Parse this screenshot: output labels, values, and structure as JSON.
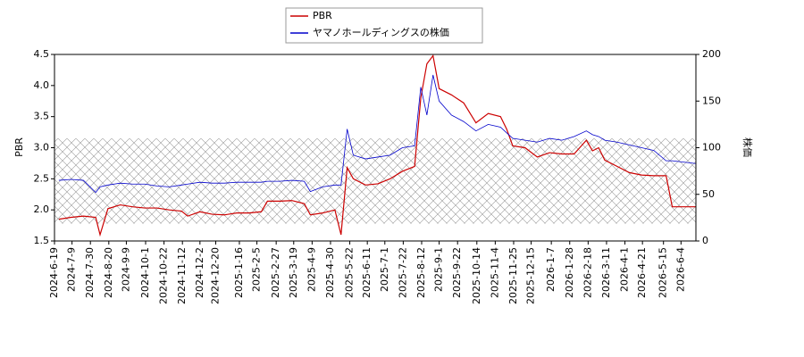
{
  "chart_data": {
    "type": "line",
    "x": [
      "2024-06-24",
      "2024-07-08",
      "2024-07-22",
      "2024-08-05",
      "2024-08-10",
      "2024-08-19",
      "2024-09-02",
      "2024-09-16",
      "2024-09-30",
      "2024-10-14",
      "2024-10-28",
      "2024-11-11",
      "2024-11-18",
      "2024-12-02",
      "2024-12-16",
      "2024-12-30",
      "2025-01-13",
      "2025-01-27",
      "2025-02-10",
      "2025-02-17",
      "2025-03-03",
      "2025-03-17",
      "2025-03-31",
      "2025-04-07",
      "2025-04-21",
      "2025-05-05",
      "2025-05-12",
      "2025-05-19",
      "2025-05-26",
      "2025-06-09",
      "2025-06-23",
      "2025-07-07",
      "2025-07-21",
      "2025-08-04",
      "2025-08-11",
      "2025-08-18",
      "2025-08-25",
      "2025-09-01",
      "2025-09-15",
      "2025-09-29",
      "2025-10-13",
      "2025-10-27",
      "2025-11-10",
      "2025-11-17",
      "2025-11-24",
      "2025-12-08",
      "2025-12-22",
      "2026-01-05",
      "2026-01-19",
      "2026-02-02",
      "2026-02-16",
      "2026-02-23",
      "2026-03-02",
      "2026-03-09",
      "2026-03-23",
      "2026-04-06",
      "2026-04-20",
      "2026-05-04",
      "2026-05-18",
      "2026-05-25",
      "2026-06-21"
    ],
    "series": [
      {
        "name": "PBR",
        "color": "#cc0000",
        "axis": "y",
        "values": [
          1.85,
          1.88,
          1.9,
          1.88,
          1.6,
          2.02,
          2.08,
          2.05,
          2.03,
          2.03,
          2.0,
          1.98,
          1.9,
          1.97,
          1.93,
          1.92,
          1.95,
          1.95,
          1.97,
          2.14,
          2.14,
          2.15,
          2.1,
          1.92,
          1.95,
          2.0,
          1.6,
          2.68,
          2.5,
          2.4,
          2.42,
          2.5,
          2.62,
          2.7,
          3.8,
          4.35,
          4.48,
          3.95,
          3.85,
          3.72,
          3.4,
          3.55,
          3.5,
          3.3,
          3.03,
          3.0,
          2.85,
          2.92,
          2.9,
          2.9,
          3.12,
          2.95,
          3.0,
          2.8,
          2.7,
          2.6,
          2.56,
          2.55,
          2.55,
          2.05,
          2.05
        ]
      },
      {
        "name": "ヤマノホールディングスの株価",
        "color": "#0000cc",
        "axis": "y2",
        "values": [
          65,
          66,
          65,
          52,
          58,
          60,
          62,
          61,
          61,
          59,
          58,
          60,
          61,
          63,
          62,
          62,
          63,
          63,
          63,
          64,
          64,
          65,
          64,
          53,
          58,
          60,
          60,
          120,
          92,
          88,
          90,
          92,
          100,
          102,
          165,
          135,
          178,
          150,
          135,
          128,
          118,
          125,
          122,
          116,
          110,
          108,
          106,
          110,
          108,
          112,
          118,
          114,
          112,
          108,
          106,
          103,
          100,
          97,
          86,
          86,
          83
        ]
      }
    ],
    "ylabel": "PBR",
    "y2label": "株価",
    "xlim": [
      "2024-06-19",
      "2026-06-21"
    ],
    "xticks": [
      {
        "value": "2024-06-19",
        "label": "2024-6-19"
      },
      {
        "value": "2024-07-09",
        "label": "2024-7-9"
      },
      {
        "value": "2024-07-30",
        "label": "2024-7-30"
      },
      {
        "value": "2024-08-20",
        "label": "2024-8-20"
      },
      {
        "value": "2024-09-09",
        "label": "2024-9-9"
      },
      {
        "value": "2024-10-01",
        "label": "2024-10-1"
      },
      {
        "value": "2024-10-22",
        "label": "2024-10-22"
      },
      {
        "value": "2024-11-12",
        "label": "2024-11-12"
      },
      {
        "value": "2024-12-02",
        "label": "2024-12-2"
      },
      {
        "value": "2024-12-20",
        "label": "2024-12-20"
      },
      {
        "value": "2025-01-16",
        "label": "2025-1-16"
      },
      {
        "value": "2025-02-05",
        "label": "2025-2-5"
      },
      {
        "value": "2025-02-27",
        "label": "2025-2-27"
      },
      {
        "value": "2025-03-19",
        "label": "2025-3-19"
      },
      {
        "value": "2025-04-09",
        "label": "2025-4-9"
      },
      {
        "value": "2025-04-30",
        "label": "2025-4-30"
      },
      {
        "value": "2025-05-22",
        "label": "2025-5-22"
      },
      {
        "value": "2025-06-11",
        "label": "2025-6-11"
      },
      {
        "value": "2025-07-01",
        "label": "2025-7-1"
      },
      {
        "value": "2025-07-22",
        "label": "2025-7-22"
      },
      {
        "value": "2025-08-12",
        "label": "2025-8-12"
      },
      {
        "value": "2025-09-01",
        "label": "2025-9-1"
      },
      {
        "value": "2025-09-22",
        "label": "2025-9-22"
      },
      {
        "value": "2025-10-14",
        "label": "2025-10-14"
      },
      {
        "value": "2025-11-04",
        "label": "2025-11-4"
      },
      {
        "value": "2025-11-25",
        "label": "2025-11-25"
      },
      {
        "value": "2025-12-15",
        "label": "2025-12-15"
      },
      {
        "value": "2026-01-07",
        "label": "2026-1-7"
      },
      {
        "value": "2026-01-28",
        "label": "2026-1-28"
      },
      {
        "value": "2026-02-18",
        "label": "2026-2-18"
      },
      {
        "value": "2026-03-11",
        "label": "2026-3-11"
      },
      {
        "value": "2026-04-01",
        "label": "2026-4-1"
      },
      {
        "value": "2026-04-21",
        "label": "2026-4-21"
      },
      {
        "value": "2026-05-15",
        "label": "2026-5-15"
      },
      {
        "value": "2026-06-04",
        "label": "2026-6-4"
      }
    ],
    "ylim": [
      1.5,
      4.5
    ],
    "yticks": [
      1.5,
      {
        "value": 2,
        "label": "2.0"
      },
      2.5,
      {
        "value": 3,
        "label": "3.0"
      },
      3.5,
      {
        "value": 4,
        "label": "4.0"
      },
      4.5
    ],
    "y2lim": [
      0,
      200
    ],
    "y2ticks": [
      0,
      50,
      100,
      150,
      200
    ],
    "shaded_band": [
      1.78,
      3.15
    ],
    "legend": "top"
  }
}
